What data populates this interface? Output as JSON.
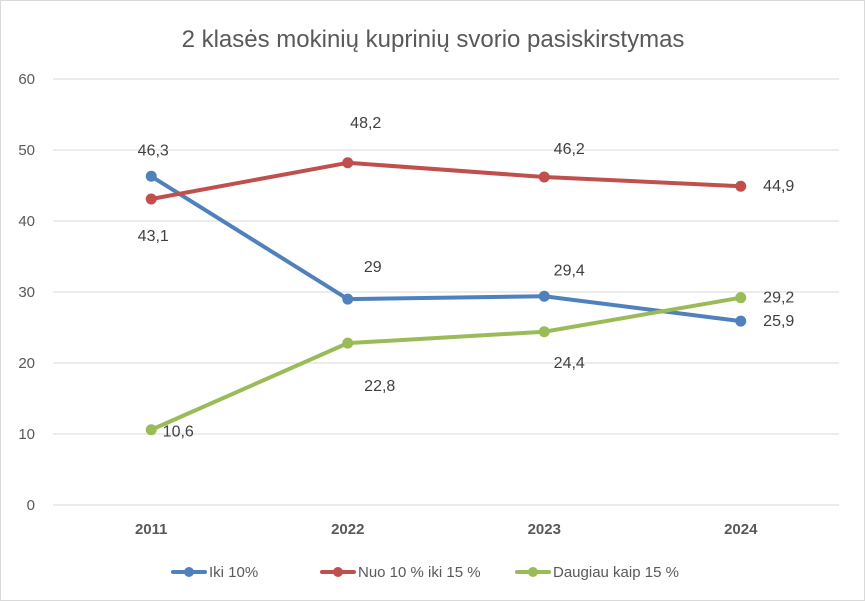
{
  "chart_data": {
    "type": "line",
    "title": "2 klasės mokinių kuprinių svorio pasiskirstymas",
    "xlabel": "",
    "ylabel": "",
    "categories": [
      "2011",
      "2022",
      "2023",
      "2024"
    ],
    "ylim": [
      0,
      60
    ],
    "yticks": [
      0,
      10,
      20,
      30,
      40,
      50,
      60
    ],
    "grid": true,
    "legend_position": "bottom",
    "series": [
      {
        "name": "Iki 10%",
        "color": "#4f81bd",
        "values": [
          46.3,
          29,
          29.4,
          25.9
        ],
        "labels": [
          "46,3",
          "29",
          "29,4",
          "25,9"
        ]
      },
      {
        "name": "Nuo 10 % iki 15 %",
        "color": "#c0504d",
        "values": [
          43.1,
          48.2,
          46.2,
          44.9
        ],
        "labels": [
          "43,1",
          "48,2",
          "46,2",
          "44,9"
        ]
      },
      {
        "name": "Daugiau kaip 15 %",
        "color": "#9bbb59",
        "values": [
          10.6,
          22.8,
          24.4,
          29.2
        ],
        "labels": [
          "10,6",
          "22,8",
          "24,4",
          "29,2"
        ]
      }
    ]
  }
}
